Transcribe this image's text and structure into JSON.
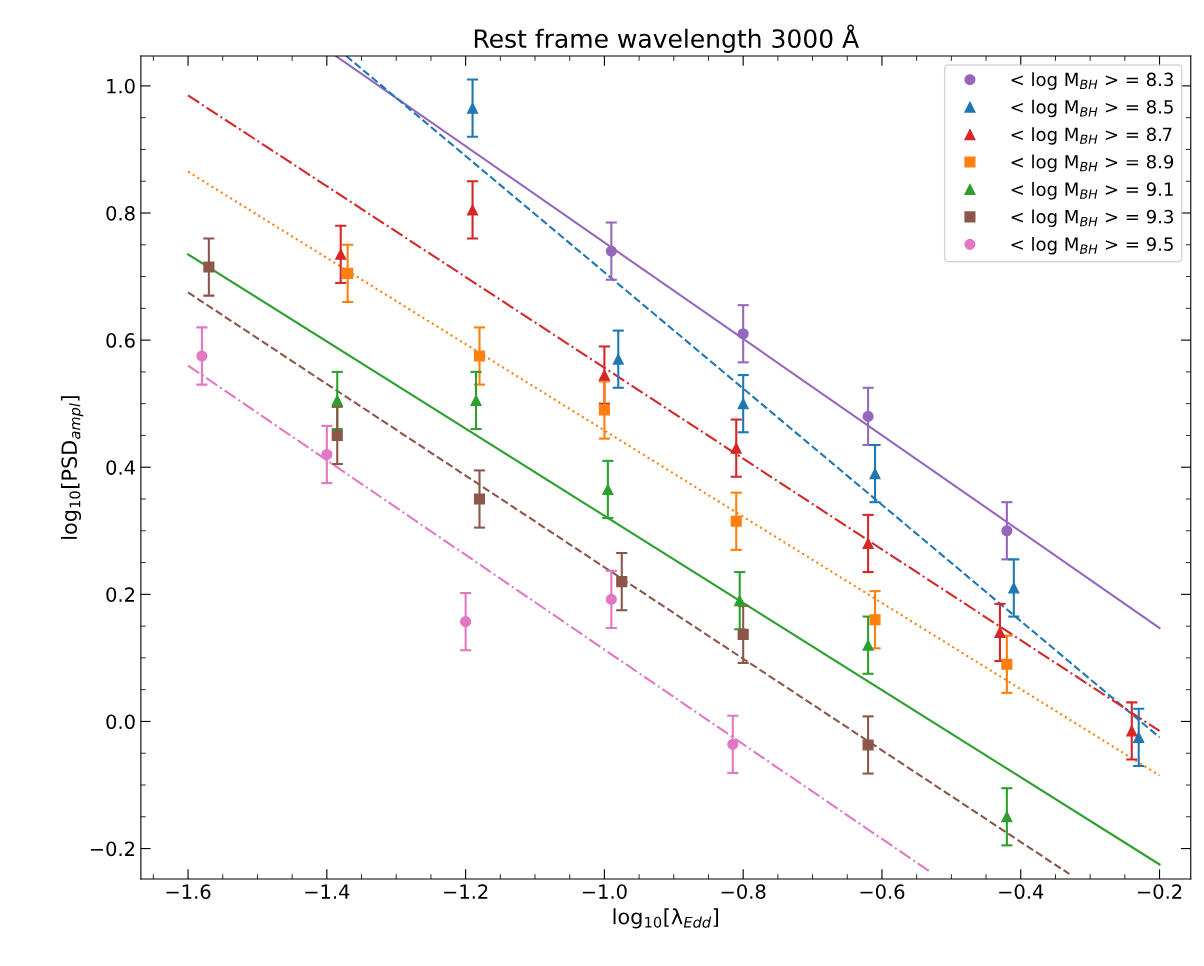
{
  "chart_data": {
    "type": "scatter",
    "title": "Rest frame wavelength 3000 Å",
    "xlabel": "log$_{10}$[λ$_{Edd}$]",
    "ylabel": "log$_{10}$[PSD$_{ampl}$]",
    "xlim": [
      -1.668,
      -0.155
    ],
    "ylim": [
      -0.248,
      1.047
    ],
    "xticks": [
      {
        "value": -1.6,
        "label": "−1.6"
      },
      {
        "value": -1.4,
        "label": "−1.4"
      },
      {
        "value": -1.2,
        "label": "−1.2"
      },
      {
        "value": -1.0,
        "label": "−1.0"
      },
      {
        "value": -0.8,
        "label": "−0.8"
      },
      {
        "value": -0.6,
        "label": "−0.6"
      },
      {
        "value": -0.4,
        "label": "−0.4"
      },
      {
        "value": -0.2,
        "label": "−0.2"
      }
    ],
    "yticks": [
      {
        "value": -0.2,
        "label": "−0.2"
      },
      {
        "value": 0.0,
        "label": "0.0"
      },
      {
        "value": 0.2,
        "label": "0.2"
      },
      {
        "value": 0.4,
        "label": "0.4"
      },
      {
        "value": 0.6,
        "label": "0.6"
      },
      {
        "value": 0.8,
        "label": "0.8"
      },
      {
        "value": 1.0,
        "label": "1.0"
      }
    ],
    "grid": false,
    "legend": "top right",
    "series": [
      {
        "name": "< log M$_{BH}$ > = 8.3",
        "color": "#9467bd",
        "marker": "circle",
        "x": [
          -0.99,
          -0.8,
          -0.62,
          -0.42
        ],
        "values": [
          0.74,
          0.61,
          0.48,
          0.3
        ],
        "errors": [
          0.045,
          0.045,
          0.045,
          0.045
        ]
      },
      {
        "name": "< log M$_{BH}$ > = 8.5",
        "color": "#1f77b4",
        "marker": "triangle",
        "x": [
          -1.19,
          -0.98,
          -0.8,
          -0.61,
          -0.41,
          -0.23
        ],
        "values": [
          0.965,
          0.57,
          0.5,
          0.39,
          0.21,
          -0.025
        ],
        "errors": [
          0.045,
          0.045,
          0.045,
          0.045,
          0.045,
          0.045
        ]
      },
      {
        "name": "< log M$_{BH}$ > = 8.7",
        "color": "#d62728",
        "marker": "triangle",
        "x": [
          -1.38,
          -1.19,
          -1.0,
          -0.81,
          -0.62,
          -0.43,
          -0.24
        ],
        "values": [
          0.735,
          0.805,
          0.545,
          0.43,
          0.28,
          0.14,
          -0.015
        ],
        "errors": [
          0.045,
          0.045,
          0.045,
          0.045,
          0.045,
          0.045,
          0.045
        ]
      },
      {
        "name": "< log M$_{BH}$ > = 8.9",
        "color": "#ff7f0e",
        "marker": "square",
        "x": [
          -1.37,
          -1.18,
          -1.0,
          -0.81,
          -0.61,
          -0.42
        ],
        "values": [
          0.705,
          0.575,
          0.49,
          0.315,
          0.16,
          0.09
        ],
        "errors": [
          0.045,
          0.045,
          0.045,
          0.045,
          0.045,
          0.045
        ]
      },
      {
        "name": "< log M$_{BH}$ > = 9.1",
        "color": "#2ca02c",
        "marker": "triangle",
        "x": [
          -1.385,
          -1.185,
          -0.995,
          -0.805,
          -0.62,
          -0.42
        ],
        "values": [
          0.505,
          0.505,
          0.365,
          0.19,
          0.12,
          -0.15
        ],
        "errors": [
          0.045,
          0.045,
          0.045,
          0.045,
          0.045,
          0.045
        ]
      },
      {
        "name": "< log M$_{BH}$ > = 9.3",
        "color": "#8c564b",
        "marker": "square",
        "x": [
          -1.57,
          -1.385,
          -1.18,
          -0.975,
          -0.8,
          -0.62
        ],
        "values": [
          0.715,
          0.45,
          0.35,
          0.22,
          0.137,
          -0.037
        ],
        "errors": [
          0.045,
          0.045,
          0.045,
          0.045,
          0.045,
          0.045
        ]
      },
      {
        "name": "< log M$_{BH}$ > = 9.5",
        "color": "#e377c2",
        "marker": "circle",
        "x": [
          -1.58,
          -1.4,
          -1.2,
          -0.99,
          -0.815
        ],
        "values": [
          0.575,
          0.42,
          0.157,
          0.192,
          -0.036
        ],
        "errors": [
          0.045,
          0.045,
          0.045,
          0.045,
          0.045
        ]
      },
      {
        "type": "line",
        "color": "#9467bd",
        "line_style": "solid",
        "x": [
          -1.387,
          -0.2
        ],
        "values": [
          1.047,
          0.147
        ]
      },
      {
        "type": "line",
        "color": "#1f77b4",
        "line_style": "dashed",
        "x": [
          -1.372,
          -0.2
        ],
        "values": [
          1.047,
          -0.025
        ]
      },
      {
        "type": "line",
        "color": "#d62728",
        "line_style": "dashdot",
        "x": [
          -1.6,
          -0.2
        ],
        "values": [
          0.985,
          -0.015
        ]
      },
      {
        "type": "line",
        "color": "#ff7f0e",
        "line_style": "dotted",
        "x": [
          -1.6,
          -0.2
        ],
        "values": [
          0.865,
          -0.085
        ]
      },
      {
        "type": "line",
        "color": "#2ca02c",
        "line_style": "solid",
        "x": [
          -1.6,
          -0.2
        ],
        "values": [
          0.735,
          -0.225
        ]
      },
      {
        "type": "line",
        "color": "#8c564b",
        "line_style": "dashed",
        "x": [
          -1.6,
          -0.33
        ],
        "values": [
          0.675,
          -0.24
        ]
      },
      {
        "type": "line",
        "color": "#e377c2",
        "line_style": "dashdot",
        "x": [
          -1.6,
          -0.53
        ],
        "values": [
          0.56,
          -0.237
        ]
      }
    ]
  }
}
